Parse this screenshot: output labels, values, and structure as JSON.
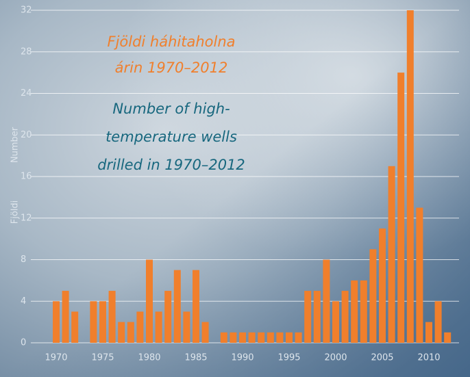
{
  "chart_data": {
    "type": "bar",
    "title": [
      "Fjöldi háhitaholna",
      "árin 1970–2012"
    ],
    "subtitle": [
      "Number of high-",
      "temperature wells",
      "drilled in 1970–2012"
    ],
    "title_color": "#f07f2c",
    "subtitle_color": "#17677e",
    "y_axis_labels": [
      "Fjöldi",
      "Number"
    ],
    "categories": [
      "1970",
      null,
      null,
      null,
      null,
      "1975",
      null,
      null,
      null,
      null,
      "1980",
      null,
      null,
      null,
      null,
      "1985",
      null,
      null,
      null,
      null,
      "1990",
      null,
      null,
      null,
      null,
      "1995",
      null,
      null,
      null,
      null,
      "2000",
      null,
      null,
      null,
      null,
      "2005",
      null,
      null,
      null,
      null,
      "2010",
      null,
      null
    ],
    "values": [
      4,
      5,
      3,
      0,
      4,
      4,
      5,
      2,
      2,
      3,
      8,
      3,
      5,
      7,
      3,
      7,
      2,
      0,
      1,
      1,
      1,
      1,
      1,
      1,
      1,
      1,
      1,
      5,
      5,
      8,
      4,
      5,
      6,
      6,
      9,
      11,
      17,
      26,
      32,
      13,
      2,
      4,
      1
    ],
    "color": "#f07f2c",
    "ylim": [
      0,
      32
    ],
    "yticks": [
      0,
      4,
      8,
      12,
      16,
      20,
      24,
      28,
      32
    ],
    "grid": true
  }
}
